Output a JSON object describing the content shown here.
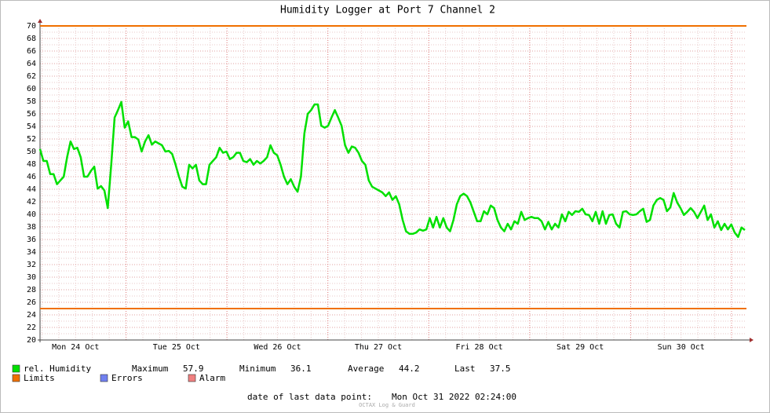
{
  "chart_data": {
    "type": "line",
    "title": "Humidity Logger at Port 7 Channel 2",
    "x_labels": [
      "Mon 24 Oct",
      "Tue 25 Oct",
      "Wed 26 Oct",
      "Thu 27 Oct",
      "Fri 28 Oct",
      "Sat 29 Oct",
      "Sun 30 Oct"
    ],
    "ylim": [
      20,
      70
    ],
    "yticks": [
      20,
      22,
      24,
      26,
      28,
      30,
      32,
      34,
      36,
      38,
      40,
      42,
      44,
      46,
      48,
      50,
      52,
      54,
      56,
      58,
      60,
      62,
      64,
      66,
      68,
      70
    ],
    "grid": true,
    "series": [
      {
        "name": "rel. Humidity",
        "color": "#00e000",
        "values": [
          50.4,
          48.5,
          48.5,
          46.4,
          46.4,
          44.8,
          45.4,
          46,
          49.1,
          51.6,
          50.4,
          50.6,
          49.1,
          46,
          46,
          46.9,
          47.6,
          44.1,
          44.5,
          43.8,
          41,
          47.9,
          55.4,
          56.6,
          57.9,
          53.8,
          54.8,
          52.3,
          52.3,
          51.9,
          50,
          51.6,
          52.6,
          51.1,
          51.6,
          51.3,
          51,
          50,
          50.1,
          49.6,
          47.9,
          46,
          44.4,
          44.1,
          47.9,
          47.3,
          47.9,
          45.4,
          44.8,
          44.8,
          47.9,
          48.5,
          49.1,
          50.6,
          49.8,
          50,
          48.8,
          49.1,
          49.8,
          49.8,
          48.5,
          48.3,
          48.8,
          47.9,
          48.5,
          48.1,
          48.5,
          49.1,
          51,
          49.8,
          49.4,
          47.9,
          46,
          44.8,
          45.6,
          44.4,
          43.6,
          46,
          52.9,
          56,
          56.6,
          57.5,
          57.5,
          54.1,
          53.8,
          54.1,
          55.4,
          56.6,
          55.4,
          54.1,
          51,
          49.8,
          50.8,
          50.6,
          49.8,
          48.5,
          47.9,
          45.4,
          44.4,
          44.1,
          43.8,
          43.5,
          42.9,
          43.5,
          42.3,
          42.9,
          41.6,
          39.1,
          37.3,
          36.9,
          36.9,
          37.1,
          37.6,
          37.4,
          37.6,
          39.4,
          37.9,
          39.6,
          37.9,
          39.4,
          37.9,
          37.3,
          39.1,
          41.6,
          42.9,
          43.3,
          42.9,
          41.9,
          40.4,
          38.9,
          38.9,
          40.5,
          40,
          41.4,
          41,
          39.1,
          37.9,
          37.3,
          38.5,
          37.6,
          38.9,
          38.5,
          40.4,
          39.1,
          39.4,
          39.6,
          39.4,
          39.4,
          38.9,
          37.6,
          38.8,
          37.6,
          38.5,
          37.9,
          40,
          38.9,
          40.4,
          39.9,
          40.5,
          40.4,
          40.9,
          40,
          39.9,
          38.9,
          40.4,
          38.5,
          40.5,
          38.5,
          39.9,
          40,
          38.5,
          37.9,
          40.4,
          40.5,
          40,
          39.9,
          40,
          40.5,
          40.9,
          38.8,
          39.1,
          41.4,
          42.3,
          42.6,
          42.3,
          40.5,
          41.1,
          43.4,
          41.9,
          41,
          39.9,
          40.4,
          41,
          40.4,
          39.4,
          40.4,
          41.4,
          39.1,
          40,
          37.9,
          38.9,
          37.5,
          38.5,
          37.6,
          38.4,
          37.1,
          36.4,
          37.9,
          37.5
        ]
      }
    ],
    "limits": {
      "name": "Limits",
      "color": "#f07000",
      "values": [
        70,
        25
      ]
    },
    "errors": {
      "name": "Errors",
      "color": "#7080f0"
    },
    "alarm": {
      "name": "Alarm",
      "color": "#f08080"
    },
    "stats": [
      {
        "label": "Maximum",
        "value": 57.9
      },
      {
        "label": "Minimum",
        "value": 36.1
      },
      {
        "label": "Average",
        "value": 44.2
      },
      {
        "label": "Last",
        "value": 37.5
      }
    ],
    "last_point_label": "date of last data point:",
    "last_point": "Mon Oct 31 2022 02:24:00",
    "credit": "OCTAX Log & Guard"
  }
}
